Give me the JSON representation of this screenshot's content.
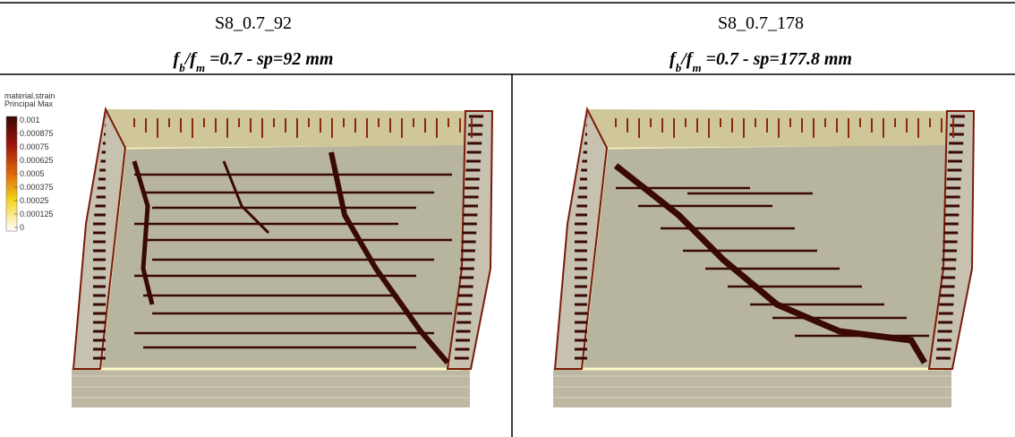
{
  "table": {
    "headers": [
      "S8_0.7_92",
      "S8_0.7_178"
    ],
    "subheaders": [
      [
        "f",
        "b",
        "/",
        "f",
        "m",
        " =0.7 - sp=92 mm"
      ],
      [
        "f",
        "b",
        "/",
        "f",
        "m",
        " =0.7 - sp=177.8 mm"
      ]
    ]
  },
  "legend": {
    "title": [
      "material.strain",
      "Principal Max"
    ],
    "labels": [
      "0.001",
      "0.000875",
      "0.00075",
      "0.000625",
      "0.0005",
      "0.000375",
      "0.00025",
      "0.000125",
      "0"
    ]
  }
}
